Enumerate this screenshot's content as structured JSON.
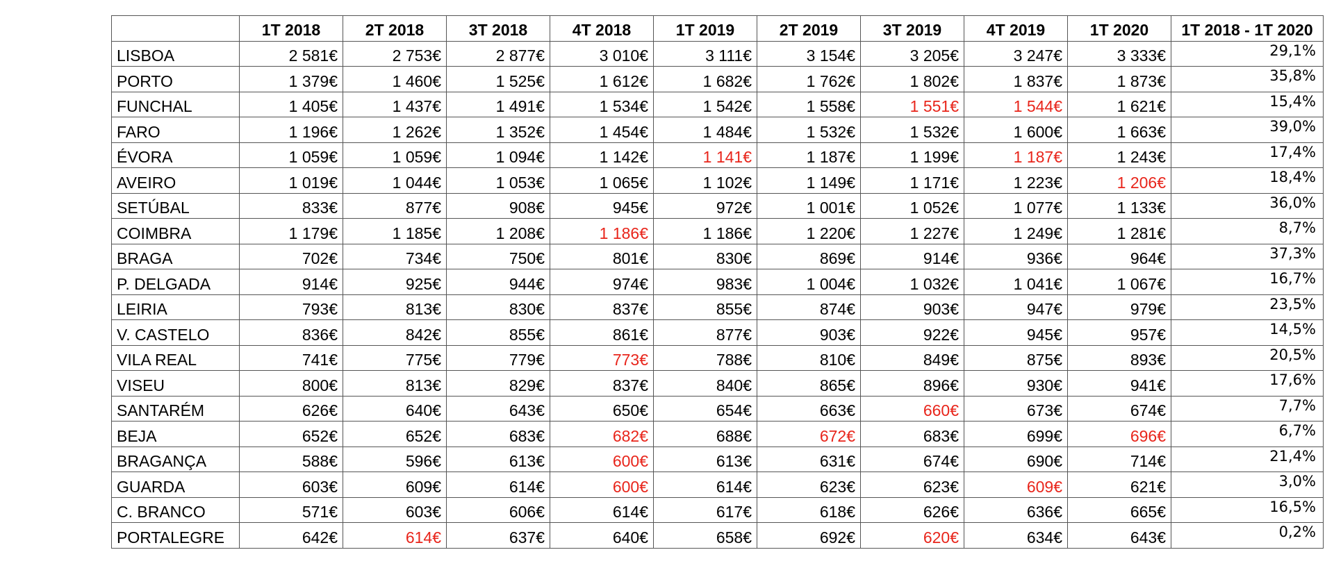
{
  "table": {
    "headers": [
      "",
      "1T 2018",
      "2T 2018",
      "3T 2018",
      "4T 2018",
      "1T 2019",
      "2T 2019",
      "3T 2019",
      "4T 2019",
      "1T 2020",
      "1T 2018 - 1T 2020"
    ],
    "decrease_color": "#e8251b",
    "rows": [
      {
        "city": "LISBOA",
        "values": [
          "2 581€",
          "2 753€",
          "2 877€",
          "3 010€",
          "3 111€",
          "3 154€",
          "3 205€",
          "3 247€",
          "3 333€"
        ],
        "change": "29,1%",
        "decreases": []
      },
      {
        "city": "PORTO",
        "values": [
          "1 379€",
          "1 460€",
          "1 525€",
          "1 612€",
          "1 682€",
          "1 762€",
          "1 802€",
          "1 837€",
          "1 873€"
        ],
        "change": "35,8%",
        "decreases": []
      },
      {
        "city": "FUNCHAL",
        "values": [
          "1 405€",
          "1 437€",
          "1 491€",
          "1 534€",
          "1 542€",
          "1 558€",
          "1 551€",
          "1 544€",
          "1 621€"
        ],
        "change": "15,4%",
        "decreases": [
          6,
          7
        ]
      },
      {
        "city": "FARO",
        "values": [
          "1 196€",
          "1 262€",
          "1 352€",
          "1 454€",
          "1 484€",
          "1 532€",
          "1 532€",
          "1 600€",
          "1 663€"
        ],
        "change": "39,0%",
        "decreases": []
      },
      {
        "city": "ÉVORA",
        "values": [
          "1 059€",
          "1 059€",
          "1 094€",
          "1 142€",
          "1 141€",
          "1 187€",
          "1 199€",
          "1 187€",
          "1 243€"
        ],
        "change": "17,4%",
        "decreases": [
          4,
          7
        ]
      },
      {
        "city": "AVEIRO",
        "values": [
          "1 019€",
          "1 044€",
          "1 053€",
          "1 065€",
          "1 102€",
          "1 149€",
          "1 171€",
          "1 223€",
          "1 206€"
        ],
        "change": "18,4%",
        "decreases": [
          8
        ]
      },
      {
        "city": "SETÚBAL",
        "values": [
          "833€",
          "877€",
          "908€",
          "945€",
          "972€",
          "1 001€",
          "1 052€",
          "1 077€",
          "1 133€"
        ],
        "change": "36,0%",
        "decreases": []
      },
      {
        "city": "COIMBRA",
        "values": [
          "1 179€",
          "1 185€",
          "1 208€",
          "1 186€",
          "1 186€",
          "1 220€",
          "1 227€",
          "1 249€",
          "1 281€"
        ],
        "change": "8,7%",
        "decreases": [
          3
        ]
      },
      {
        "city": "BRAGA",
        "values": [
          "702€",
          "734€",
          "750€",
          "801€",
          "830€",
          "869€",
          "914€",
          "936€",
          "964€"
        ],
        "change": "37,3%",
        "decreases": []
      },
      {
        "city": "P. DELGADA",
        "values": [
          "914€",
          "925€",
          "944€",
          "974€",
          "983€",
          "1 004€",
          "1 032€",
          "1 041€",
          "1 067€"
        ],
        "change": "16,7%",
        "decreases": []
      },
      {
        "city": "LEIRIA",
        "values": [
          "793€",
          "813€",
          "830€",
          "837€",
          "855€",
          "874€",
          "903€",
          "947€",
          "979€"
        ],
        "change": "23,5%",
        "decreases": []
      },
      {
        "city": "V. CASTELO",
        "values": [
          "836€",
          "842€",
          "855€",
          "861€",
          "877€",
          "903€",
          "922€",
          "945€",
          "957€"
        ],
        "change": "14,5%",
        "decreases": []
      },
      {
        "city": "VILA REAL",
        "values": [
          "741€",
          "775€",
          "779€",
          "773€",
          "788€",
          "810€",
          "849€",
          "875€",
          "893€"
        ],
        "change": "20,5%",
        "decreases": [
          3
        ]
      },
      {
        "city": "VISEU",
        "values": [
          "800€",
          "813€",
          "829€",
          "837€",
          "840€",
          "865€",
          "896€",
          "930€",
          "941€"
        ],
        "change": "17,6%",
        "decreases": []
      },
      {
        "city": "SANTARÉM",
        "values": [
          "626€",
          "640€",
          "643€",
          "650€",
          "654€",
          "663€",
          "660€",
          "673€",
          "674€"
        ],
        "change": "7,7%",
        "decreases": [
          6
        ]
      },
      {
        "city": "BEJA",
        "values": [
          "652€",
          "652€",
          "683€",
          "682€",
          "688€",
          "672€",
          "683€",
          "699€",
          "696€"
        ],
        "change": "6,7%",
        "decreases": [
          3,
          5,
          8
        ]
      },
      {
        "city": "BRAGANÇA",
        "values": [
          "588€",
          "596€",
          "613€",
          "600€",
          "613€",
          "631€",
          "674€",
          "690€",
          "714€"
        ],
        "change": "21,4%",
        "decreases": [
          3
        ]
      },
      {
        "city": "GUARDA",
        "values": [
          "603€",
          "609€",
          "614€",
          "600€",
          "614€",
          "623€",
          "623€",
          "609€",
          "621€"
        ],
        "change": "3,0%",
        "decreases": [
          3,
          7
        ]
      },
      {
        "city": "C. BRANCO",
        "values": [
          "571€",
          "603€",
          "606€",
          "614€",
          "617€",
          "618€",
          "626€",
          "636€",
          "665€"
        ],
        "change": "16,5%",
        "decreases": []
      },
      {
        "city": "PORTALEGRE",
        "values": [
          "642€",
          "614€",
          "637€",
          "640€",
          "658€",
          "692€",
          "620€",
          "634€",
          "643€"
        ],
        "change": "0,2%",
        "decreases": [
          1,
          6
        ]
      }
    ]
  }
}
